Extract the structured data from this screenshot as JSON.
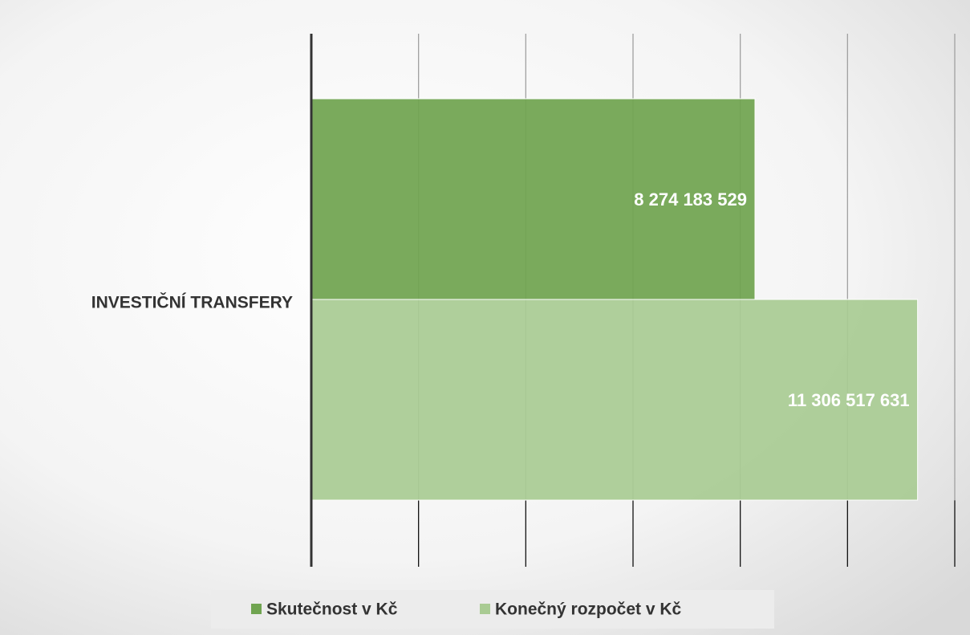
{
  "chart_data": {
    "type": "barh",
    "categories": [
      "INVESTIČNÍ TRANSFERY"
    ],
    "series": [
      {
        "name": "Skutečnost v Kč",
        "color": "#70a450",
        "values": [
          8274183529
        ],
        "value_labels": [
          "8 274 183 529"
        ]
      },
      {
        "name": "Konečný rozpočet v Kč",
        "color": "#a9cb93",
        "values": [
          11306517631
        ],
        "value_labels": [
          "11 306 517 631"
        ]
      }
    ],
    "xlim": [
      0,
      12000000000
    ],
    "xticks": [
      0,
      2000000000,
      4000000000,
      6000000000,
      8000000000,
      10000000000,
      12000000000
    ],
    "grid": true,
    "legend": "bottom"
  }
}
